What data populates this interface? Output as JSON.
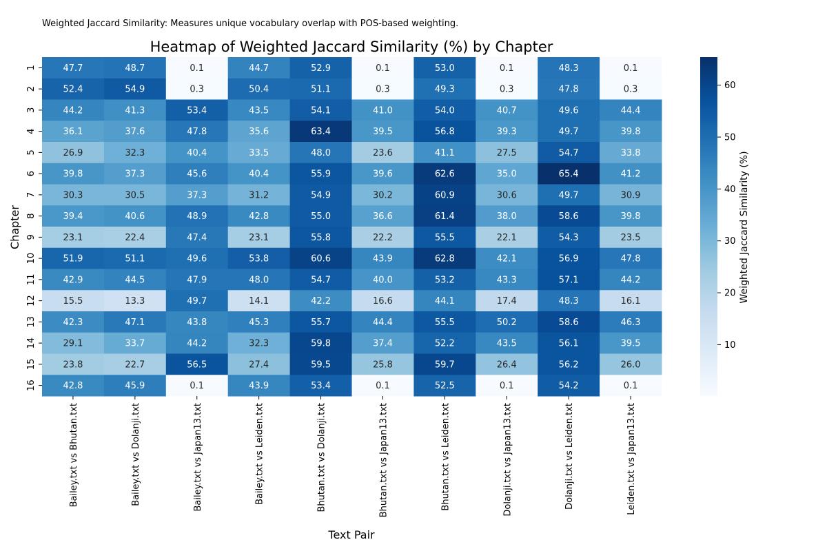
{
  "note": "Weighted Jaccard Similarity: Measures unique vocabulary overlap with POS-based weighting.",
  "chart_data": {
    "type": "heatmap",
    "title": "Heatmap of Weighted Jaccard Similarity (%) by Chapter",
    "xlabel": "Text Pair",
    "ylabel": "Chapter",
    "colorbar_label": "Weighted Jaccard Similarity (%)",
    "colormap": "Blues",
    "value_range": [
      0.1,
      65.4
    ],
    "colorbar_ticks": [
      10,
      20,
      30,
      40,
      50,
      60
    ],
    "x_labels": [
      "Bailey.txt vs Bhutan.txt",
      "Bailey.txt vs Dolanji.txt",
      "Bailey.txt vs Japan13.txt",
      "Bailey.txt vs Leiden.txt",
      "Bhutan.txt vs Dolanji.txt",
      "Bhutan.txt vs Japan13.txt",
      "Bhutan.txt vs Leiden.txt",
      "Dolanji.txt vs Japan13.txt",
      "Dolanji.txt vs Leiden.txt",
      "Leiden.txt vs Japan13.txt"
    ],
    "y_labels": [
      "1",
      "2",
      "3",
      "4",
      "5",
      "6",
      "7",
      "8",
      "9",
      "10",
      "11",
      "12",
      "13",
      "14",
      "15",
      "16"
    ],
    "values": [
      [
        47.7,
        48.7,
        0.1,
        44.7,
        52.9,
        0.1,
        53.0,
        0.1,
        48.3,
        0.1
      ],
      [
        52.4,
        54.9,
        0.3,
        50.4,
        51.1,
        0.3,
        49.3,
        0.3,
        47.8,
        0.3
      ],
      [
        44.2,
        41.3,
        53.4,
        43.5,
        54.1,
        41.0,
        54.0,
        40.7,
        49.6,
        44.4
      ],
      [
        36.1,
        37.6,
        47.8,
        35.6,
        63.4,
        39.5,
        56.8,
        39.3,
        49.7,
        39.8
      ],
      [
        26.9,
        32.3,
        40.4,
        33.5,
        48.0,
        23.6,
        41.1,
        27.5,
        54.7,
        33.8
      ],
      [
        39.8,
        37.3,
        45.6,
        40.4,
        55.9,
        39.6,
        62.6,
        35.0,
        65.4,
        41.2
      ],
      [
        30.3,
        30.5,
        37.3,
        31.2,
        54.9,
        30.2,
        60.9,
        30.6,
        49.7,
        30.9
      ],
      [
        39.4,
        40.6,
        48.9,
        42.8,
        55.0,
        36.6,
        61.4,
        38.0,
        58.6,
        39.8
      ],
      [
        23.1,
        22.4,
        47.4,
        23.1,
        55.8,
        22.2,
        55.5,
        22.1,
        54.3,
        23.5
      ],
      [
        51.9,
        51.1,
        49.6,
        53.8,
        60.6,
        43.9,
        62.8,
        42.1,
        56.9,
        47.8
      ],
      [
        42.9,
        44.5,
        47.9,
        48.0,
        54.7,
        40.0,
        53.2,
        43.3,
        57.1,
        44.2
      ],
      [
        15.5,
        13.3,
        49.7,
        14.1,
        42.2,
        16.6,
        44.1,
        17.4,
        48.3,
        16.1
      ],
      [
        42.3,
        47.1,
        43.8,
        45.3,
        55.7,
        44.4,
        55.5,
        50.2,
        58.6,
        46.3
      ],
      [
        29.1,
        33.7,
        44.2,
        32.3,
        59.8,
        37.4,
        52.2,
        43.5,
        56.1,
        39.5
      ],
      [
        23.8,
        22.7,
        56.5,
        27.4,
        59.5,
        25.8,
        59.7,
        26.4,
        56.2,
        26.0
      ],
      [
        42.8,
        45.9,
        0.1,
        43.9,
        53.4,
        0.1,
        52.5,
        0.1,
        54.2,
        0.1
      ]
    ]
  }
}
